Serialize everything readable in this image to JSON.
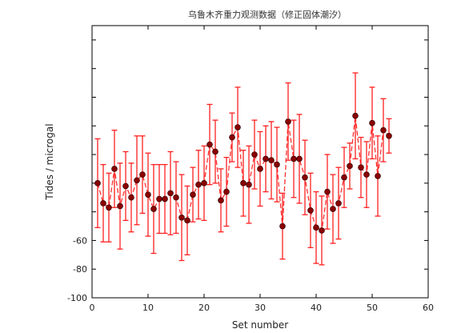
{
  "chart_data": {
    "type": "scatter",
    "title": "乌鲁木齐重力观测数据（修正固体潮汐）",
    "xlabel": "Set number",
    "ylabel": "Tides / microgal",
    "xlim": [
      0,
      60
    ],
    "ylim": [
      -100,
      90
    ],
    "x_ticks": [
      0,
      10,
      20,
      30,
      40,
      50,
      60
    ],
    "y_ticks_labeled": [
      -60,
      -80,
      -100
    ],
    "y_ticks_unlabeled": [
      -40,
      -20,
      0,
      20,
      40,
      60,
      80
    ],
    "grid": false,
    "legend": "none",
    "marker_color": "#8b0000",
    "error_bar_color": "#ff2020",
    "line_color": "#ff3030",
    "line_style": "dashed",
    "series": [
      {
        "x": [
          1,
          2,
          3,
          4,
          5,
          6,
          7,
          8,
          9,
          10,
          11,
          12,
          13,
          14,
          15,
          16,
          17,
          18,
          19,
          20,
          21,
          22,
          23,
          24,
          25,
          26,
          27,
          28,
          29,
          30,
          31,
          32,
          33,
          34,
          35,
          36,
          37,
          38,
          39,
          40,
          41,
          42,
          43,
          44,
          45,
          46,
          47,
          48,
          49,
          50,
          51,
          52,
          53
        ],
        "y": [
          -20,
          -34,
          -37,
          -10,
          -36,
          -22,
          -30,
          -18,
          -14,
          -28,
          -38,
          -31,
          -31,
          -27,
          -30,
          -44,
          -46,
          -28,
          -21,
          -20,
          7,
          2,
          -32,
          -26,
          12,
          19,
          -20,
          -21,
          0,
          -10,
          -3,
          -4,
          -7,
          -50,
          23,
          -3,
          -3,
          -16,
          -39,
          -51,
          -53,
          -26,
          -38,
          -34,
          -16,
          -8,
          27,
          -9,
          -14,
          22,
          -15,
          17,
          13
        ],
        "error": [
          31,
          27,
          24,
          27,
          30,
          24,
          24,
          31,
          27,
          29,
          31,
          24,
          24,
          29,
          25,
          30,
          24,
          19,
          24,
          26,
          28,
          22,
          22,
          24,
          17,
          28,
          23,
          27,
          24,
          26,
          23,
          27,
          26,
          23,
          27,
          27,
          31,
          26,
          26,
          25,
          24,
          26,
          24,
          25,
          21,
          16,
          30,
          21,
          23,
          25,
          28,
          22,
          12
        ]
      }
    ]
  }
}
